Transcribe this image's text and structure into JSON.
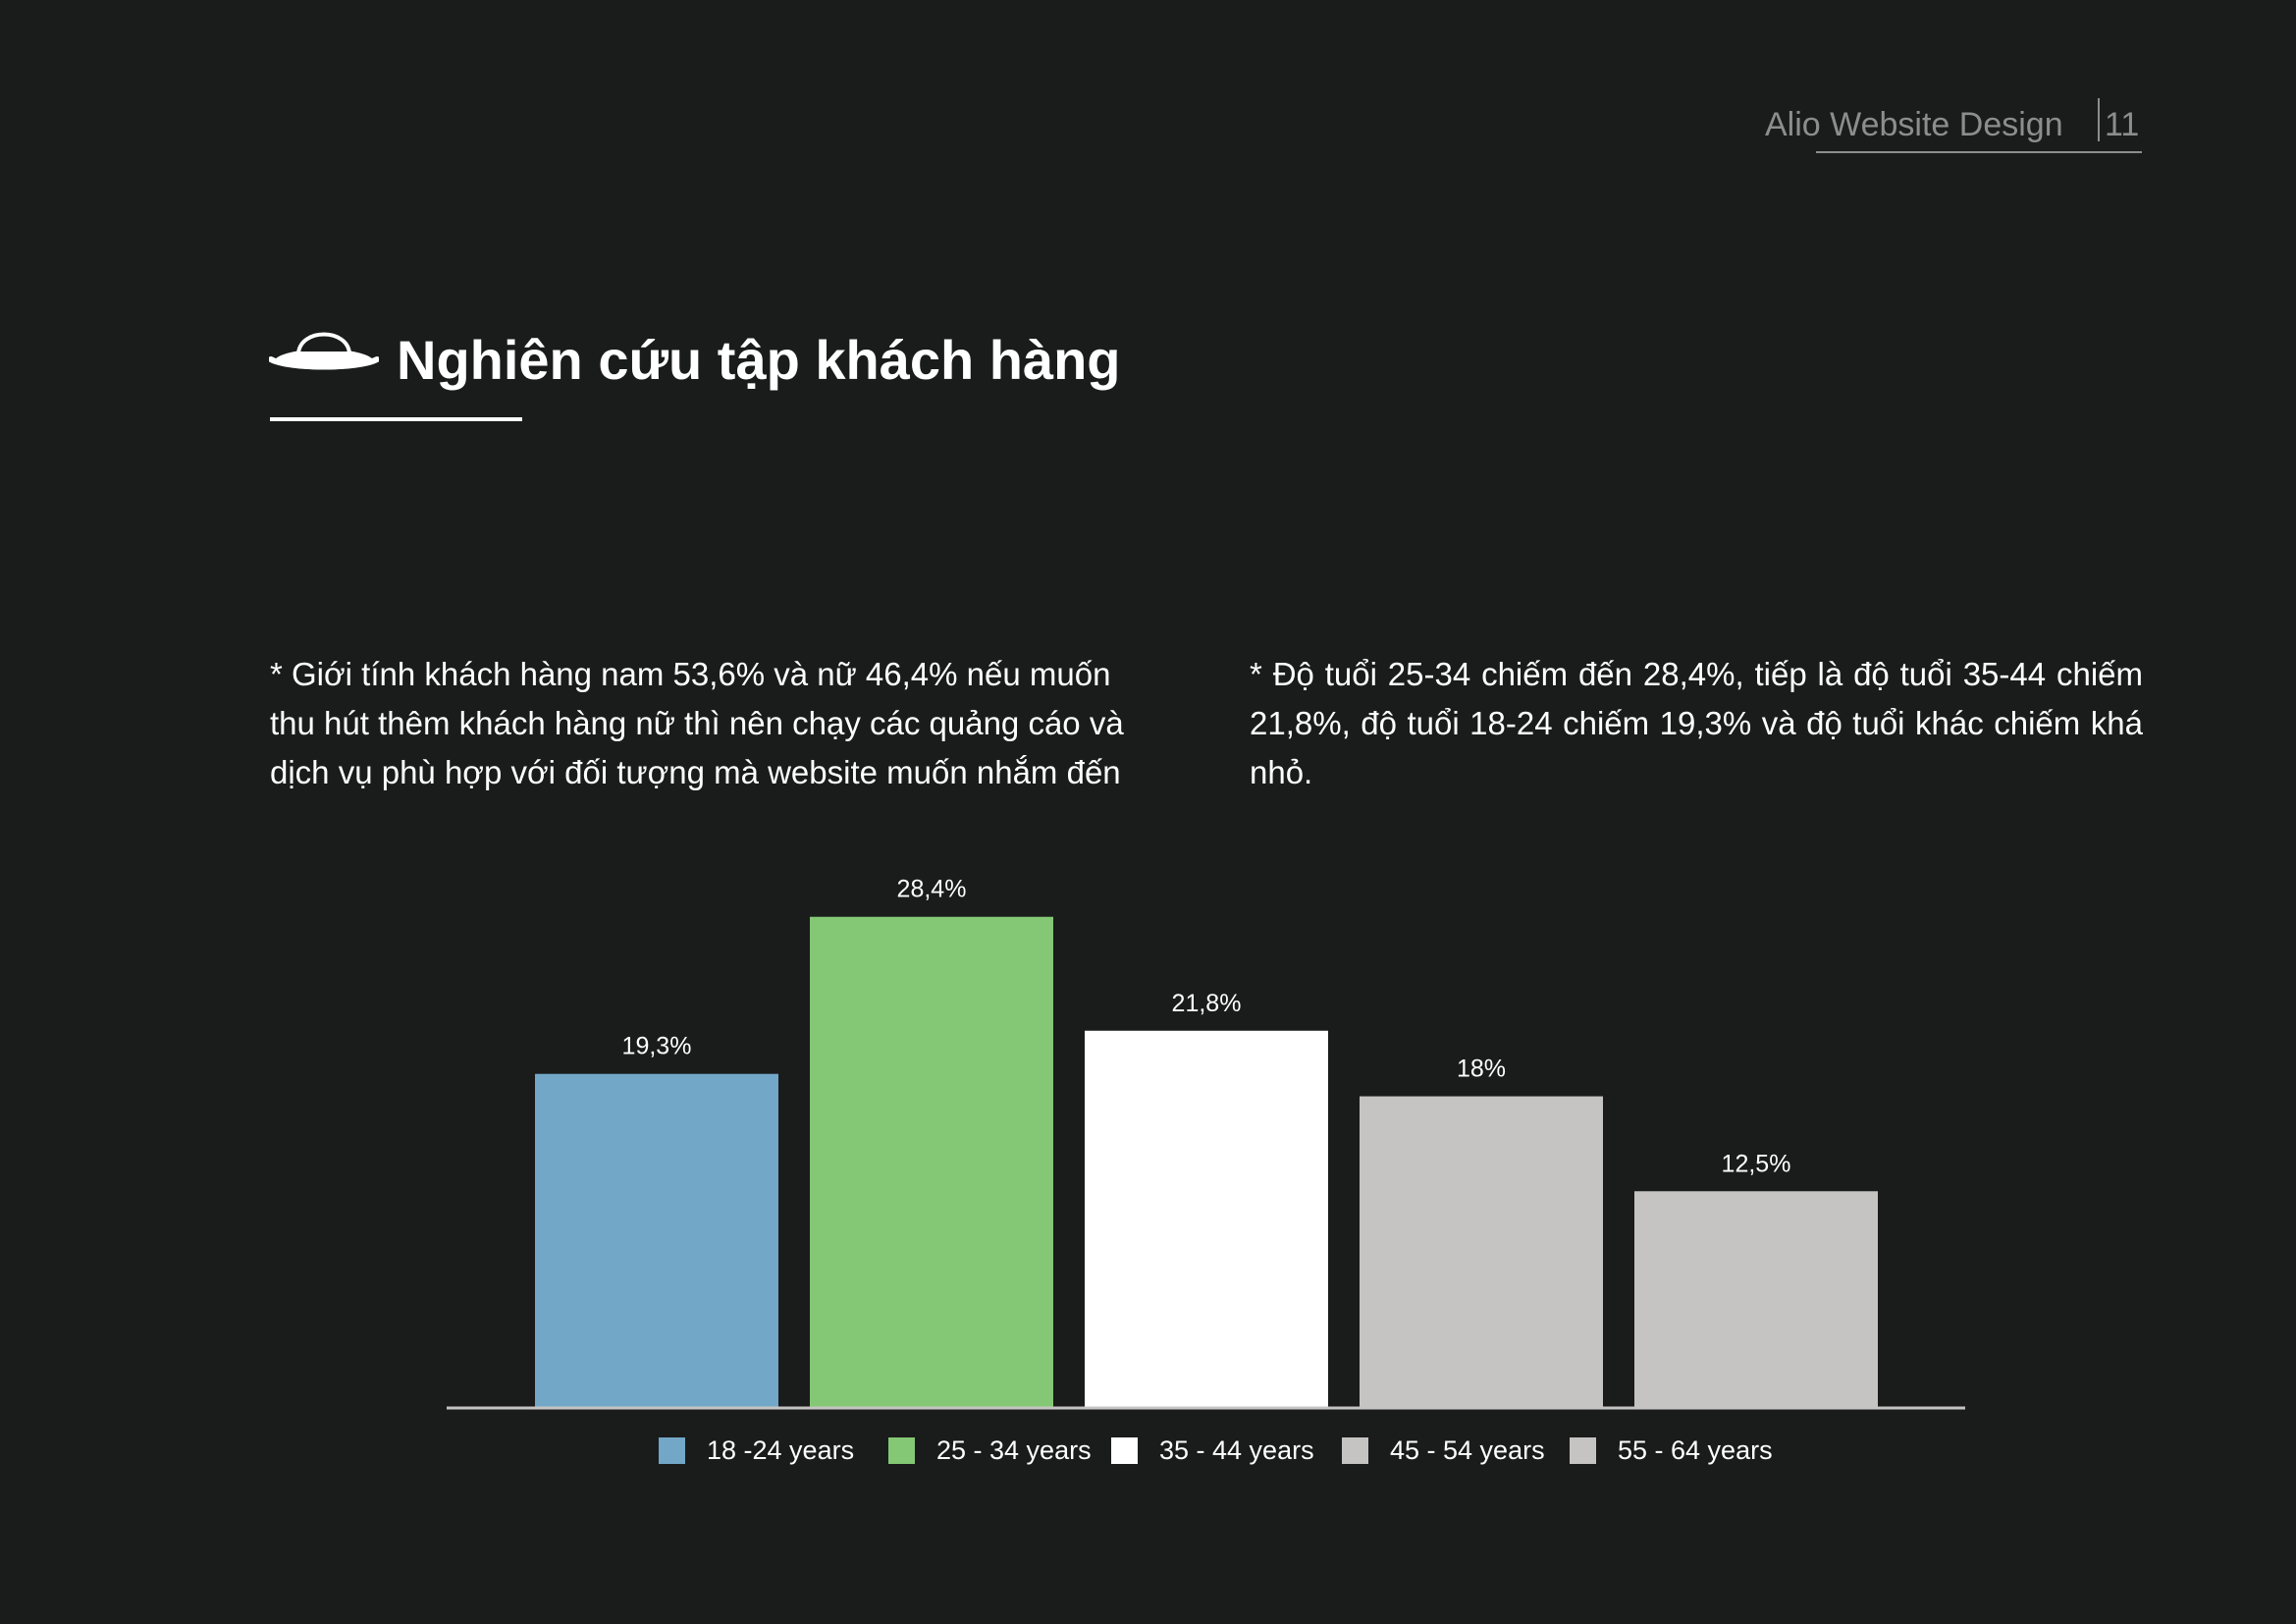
{
  "header": {
    "brand": "Alio Website Design",
    "page_number": "11"
  },
  "page_title": "Nghiên cứu tập khách hàng",
  "title_icon": "hat-icon",
  "notes": {
    "left": "* Giới tính khách hàng nam 53,6% và nữ 46,4% nếu muốn thu hút thêm khách hàng nữ thì nên chạy các quảng cáo và dịch vụ phù hợp với đối tượng mà website muốn nhắm đến",
    "right": "* Độ tuổi 25-34 chiếm đến 28,4%, tiếp là độ tuổi 35-44 chiếm 21,8%, độ tuổi 18-24 chiếm 19,3% và độ tuổi khác chiếm khá nhỏ."
  },
  "colors": {
    "background": "#1a1b1b",
    "bar_18_24": "#72a7c7",
    "bar_25_34": "#84c774",
    "bar_35_44": "#ffffff",
    "bar_other": "#c5c4c2"
  },
  "chart_data": {
    "type": "bar",
    "title": "",
    "xlabel": "",
    "ylabel": "",
    "ylim": [
      0,
      30
    ],
    "grid": false,
    "legend_position": "bottom",
    "categories": [
      "18 -24 years",
      "25 - 34 years",
      "35 - 44 years",
      "45 - 54 years",
      "55 - 64 years"
    ],
    "values": [
      19.3,
      28.4,
      21.8,
      18,
      12.5
    ],
    "data_labels": [
      "19,3%",
      "28,4%",
      "21,8%",
      "18%",
      "12,5%"
    ],
    "colors": [
      "#72a7c7",
      "#84c774",
      "#ffffff",
      "#c5c4c2",
      "#c5c4c2"
    ]
  }
}
